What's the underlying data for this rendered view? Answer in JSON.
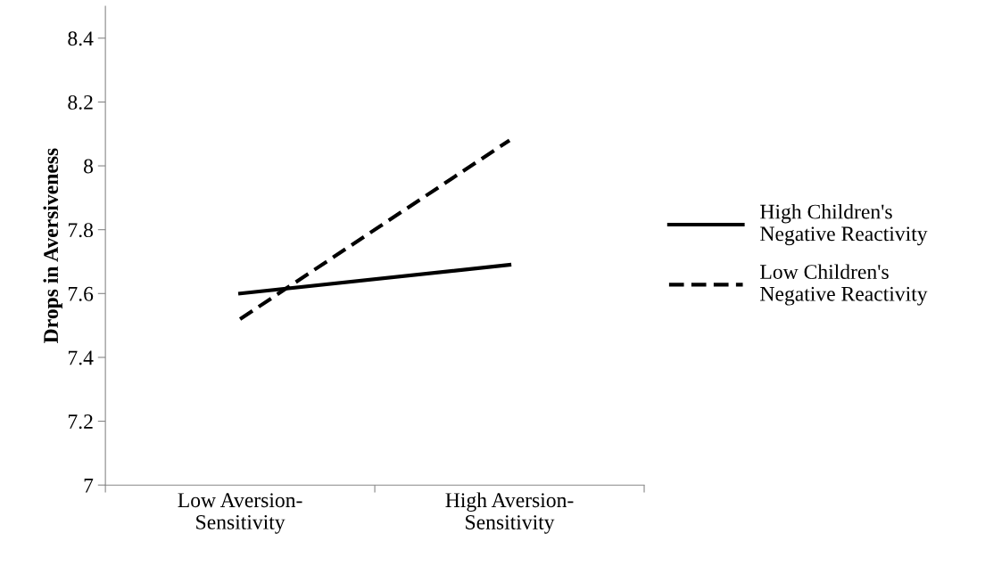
{
  "chart_data": {
    "type": "line",
    "ylabel": "Drops in Aversiveness",
    "categories": [
      "Low Aversion-\nSensitivity",
      "High Aversion-\nSensitivity"
    ],
    "series": [
      {
        "name": "High Children's\nNegative Reactivity",
        "color": "#000000",
        "values": [
          7.6,
          7.69
        ],
        "line_style": "solid"
      },
      {
        "name": "Low Children's\nNegative Reactivity",
        "color": "#000000",
        "values": [
          7.52,
          8.08
        ],
        "line_style": "dashed"
      }
    ],
    "ylim": [
      7,
      8.5
    ],
    "yticks": [
      7,
      7.2,
      7.4,
      7.6,
      7.8,
      8,
      8.2,
      8.4
    ],
    "grid": false,
    "legend": "right",
    "marker": "none"
  }
}
